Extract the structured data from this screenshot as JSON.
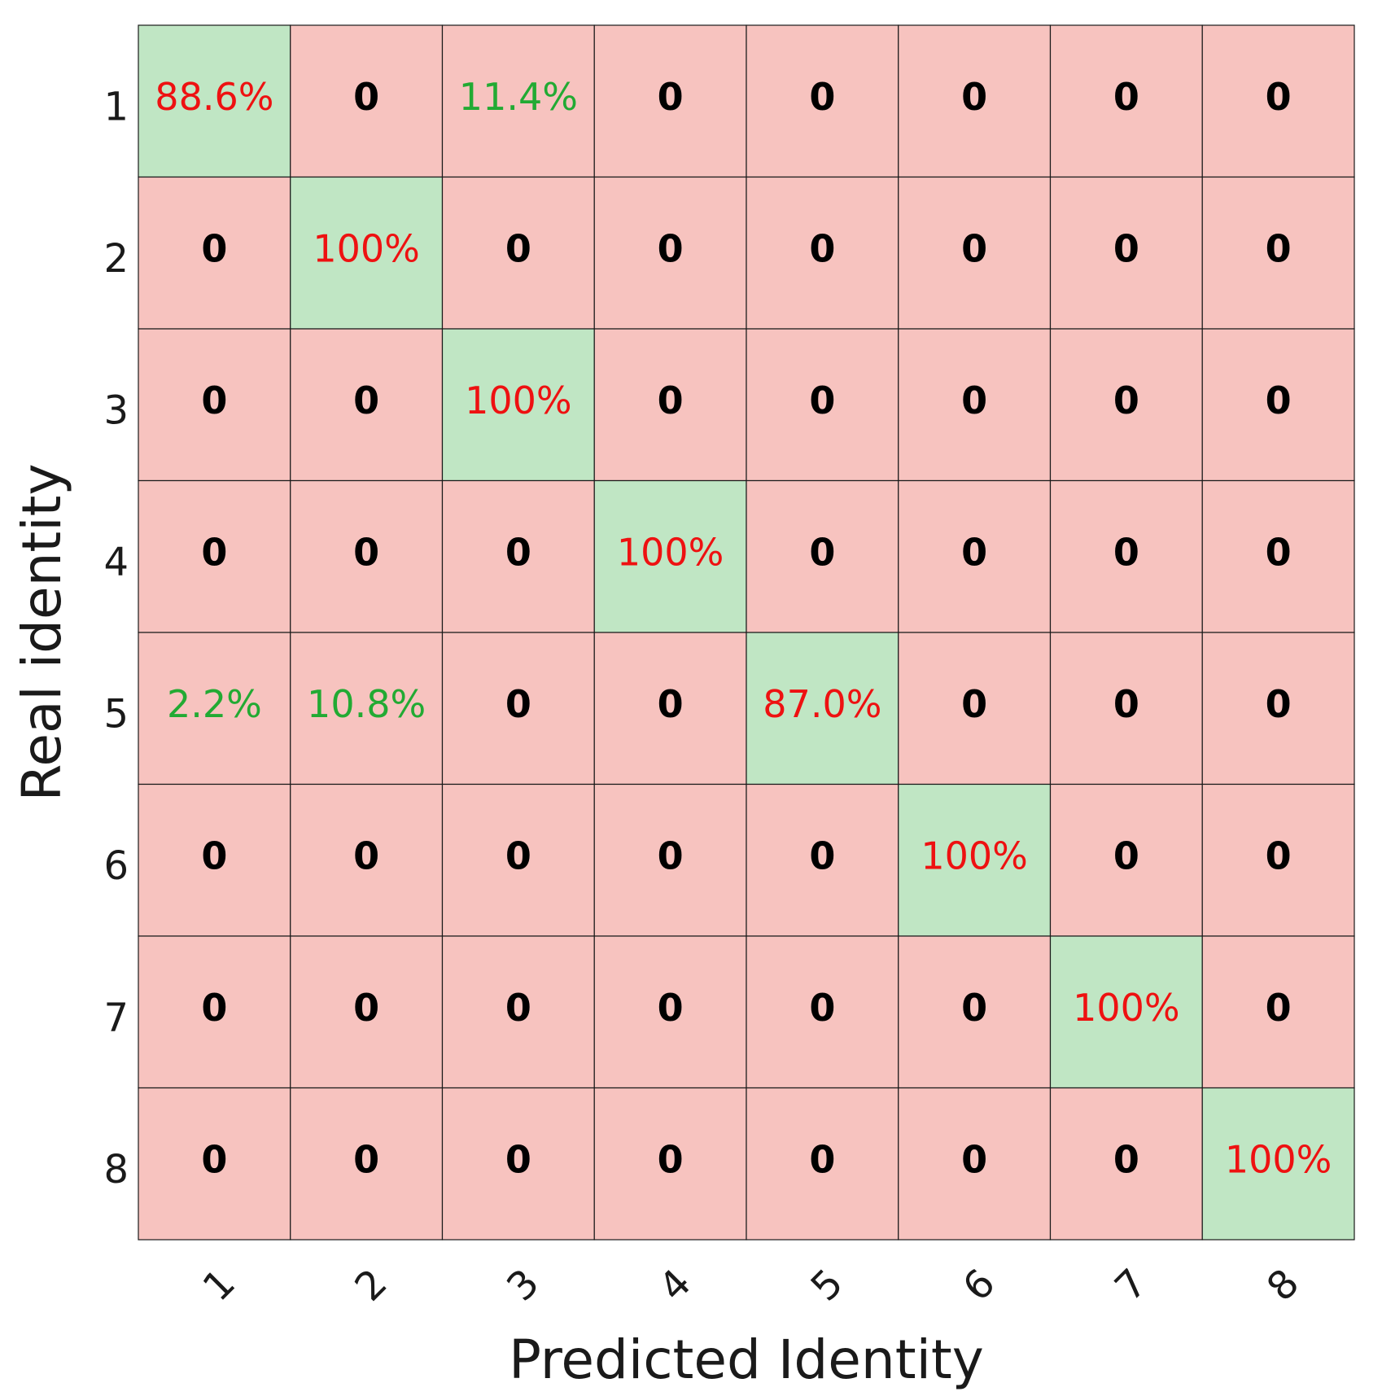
{
  "chart_data": {
    "type": "heatmap",
    "title": "",
    "xlabel": "Predicted Identity",
    "ylabel": "Real identity",
    "x_categories": [
      "1",
      "2",
      "3",
      "4",
      "5",
      "6",
      "7",
      "8"
    ],
    "y_categories": [
      "1",
      "2",
      "3",
      "4",
      "5",
      "6",
      "7",
      "8"
    ],
    "matrix_labels": [
      [
        "88.6%",
        "0",
        "11.4%",
        "0",
        "0",
        "0",
        "0",
        "0"
      ],
      [
        "0",
        "100%",
        "0",
        "0",
        "0",
        "0",
        "0",
        "0"
      ],
      [
        "0",
        "0",
        "100%",
        "0",
        "0",
        "0",
        "0",
        "0"
      ],
      [
        "0",
        "0",
        "0",
        "100%",
        "0",
        "0",
        "0",
        "0"
      ],
      [
        "2.2%",
        "10.8%",
        "0",
        "0",
        "87.0%",
        "0",
        "0",
        "0"
      ],
      [
        "0",
        "0",
        "0",
        "0",
        "0",
        "100%",
        "0",
        "0"
      ],
      [
        "0",
        "0",
        "0",
        "0",
        "0",
        "0",
        "100%",
        "0"
      ],
      [
        "0",
        "0",
        "0",
        "0",
        "0",
        "0",
        "0",
        "100%"
      ]
    ],
    "matrix_values": [
      [
        88.6,
        0,
        11.4,
        0,
        0,
        0,
        0,
        0
      ],
      [
        0,
        100,
        0,
        0,
        0,
        0,
        0,
        0
      ],
      [
        0,
        0,
        100,
        0,
        0,
        0,
        0,
        0
      ],
      [
        0,
        0,
        0,
        100,
        0,
        0,
        0,
        0
      ],
      [
        2.2,
        10.8,
        0,
        0,
        87.0,
        0,
        0,
        0
      ],
      [
        0,
        0,
        0,
        0,
        0,
        100,
        0,
        0
      ],
      [
        0,
        0,
        0,
        0,
        0,
        0,
        100,
        0
      ],
      [
        0,
        0,
        0,
        0,
        0,
        0,
        0,
        100
      ]
    ],
    "colors": {
      "diagonal_fill": "#c0e6c4",
      "offdiagonal_fill": "#f7c3bf",
      "grid_line": "#1a1a1a",
      "diagonal_text": "#ee1111",
      "offdiagonal_nonzero_text": "#22aa33",
      "zero_text": "#000000"
    },
    "x_tick_rotation": "rotated -45 degrees",
    "grid": true,
    "legend": "none"
  }
}
